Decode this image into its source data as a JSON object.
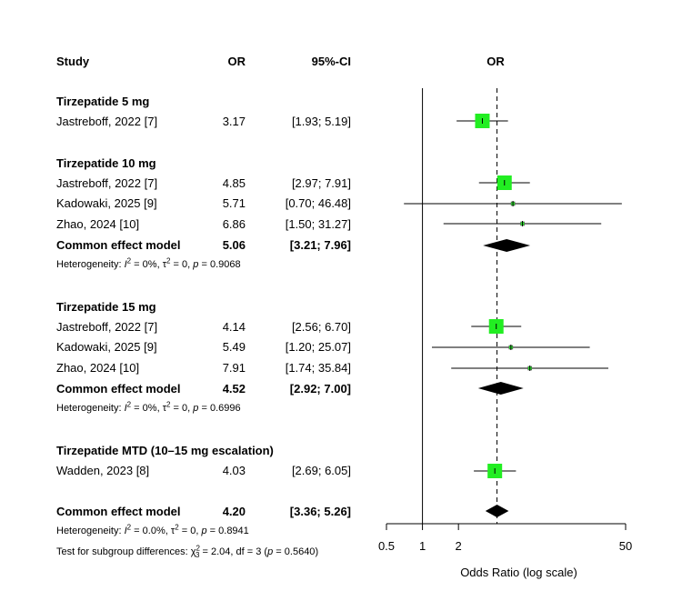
{
  "headers": {
    "study": "Study",
    "or": "OR",
    "ci": "95%-CI",
    "plot": "OR"
  },
  "groups": [
    {
      "title": "Tirzepatide 5 mg",
      "studies": [
        {
          "name": "Jastreboff, 2022 [7]",
          "or": "3.17",
          "ci": "[1.93;  5.19]"
        }
      ]
    },
    {
      "title": "Tirzepatide 10 mg",
      "studies": [
        {
          "name": "Jastreboff, 2022 [7]",
          "or": "4.85",
          "ci": "[2.97;  7.91]"
        },
        {
          "name": "Kadowaki, 2025 [9]",
          "or": "5.71",
          "ci": "[0.70; 46.48]"
        },
        {
          "name": "Zhao, 2024 [10]",
          "or": "6.86",
          "ci": "[1.50; 31.27]"
        }
      ],
      "summary": {
        "label": "Common effect model",
        "or": "5.06",
        "ci": "[3.21;  7.96]"
      },
      "het": {
        "i2": "0%",
        "tau2": "0",
        "p": "0.9068"
      }
    },
    {
      "title": "Tirzepatide 15 mg",
      "studies": [
        {
          "name": "Jastreboff, 2022 [7]",
          "or": "4.14",
          "ci": "[2.56;  6.70]"
        },
        {
          "name": "Kadowaki, 2025 [9]",
          "or": "5.49",
          "ci": "[1.20; 25.07]"
        },
        {
          "name": "Zhao, 2024 [10]",
          "or": "7.91",
          "ci": "[1.74; 35.84]"
        }
      ],
      "summary": {
        "label": "Common effect model",
        "or": "4.52",
        "ci": "[2.92;  7.00]"
      },
      "het": {
        "i2": "0%",
        "tau2": "0",
        "p": "0.6996"
      }
    },
    {
      "title": "Tirzepatide MTD (10–15 mg escalation)",
      "studies": [
        {
          "name": "Wadden, 2023 [8]",
          "or": "4.03",
          "ci": "[2.69;  6.05]"
        }
      ]
    }
  ],
  "overall": {
    "label": "Common effect model",
    "or": "4.20",
    "ci": "[3.36;  5.26]",
    "het": {
      "i2": "0.0%",
      "tau2": "0",
      "p": "0.8941"
    },
    "subgroup_test": {
      "chi2": "2.04",
      "df": "3",
      "p": "0.5640"
    }
  },
  "chart_data": {
    "type": "forest",
    "scale": "log",
    "xlabel": "Odds Ratio (log scale)",
    "xticks": [
      0.5,
      1,
      2,
      50
    ],
    "xtick_labels": [
      "0.5",
      "1",
      "2",
      "50"
    ],
    "xlim": [
      0.5,
      50
    ],
    "reference_line": 1,
    "pooled_line": 4.2,
    "rows": [
      {
        "kind": "study",
        "label": "Jastreboff, 2022 [7]",
        "or": 3.17,
        "lo": 1.93,
        "hi": 5.19,
        "weight": "large"
      },
      {
        "kind": "study",
        "label": "Jastreboff, 2022 [7]",
        "or": 4.85,
        "lo": 2.97,
        "hi": 7.91,
        "weight": "large"
      },
      {
        "kind": "study",
        "label": "Kadowaki, 2025 [9]",
        "or": 5.71,
        "lo": 0.7,
        "hi": 46.48,
        "weight": "small"
      },
      {
        "kind": "study",
        "label": "Zhao, 2024 [10]",
        "or": 6.86,
        "lo": 1.5,
        "hi": 31.27,
        "weight": "small"
      },
      {
        "kind": "summary",
        "label": "Common effect model",
        "or": 5.06,
        "lo": 3.21,
        "hi": 7.96
      },
      {
        "kind": "study",
        "label": "Jastreboff, 2022 [7]",
        "or": 4.14,
        "lo": 2.56,
        "hi": 6.7,
        "weight": "large"
      },
      {
        "kind": "study",
        "label": "Kadowaki, 2025 [9]",
        "or": 5.49,
        "lo": 1.2,
        "hi": 25.07,
        "weight": "small"
      },
      {
        "kind": "study",
        "label": "Zhao, 2024 [10]",
        "or": 7.91,
        "lo": 1.74,
        "hi": 35.84,
        "weight": "small"
      },
      {
        "kind": "summary",
        "label": "Common effect model",
        "or": 4.52,
        "lo": 2.92,
        "hi": 7.0
      },
      {
        "kind": "study",
        "label": "Wadden, 2023 [8]",
        "or": 4.03,
        "lo": 2.69,
        "hi": 6.05,
        "weight": "large"
      },
      {
        "kind": "summary",
        "label": "Common effect model",
        "or": 4.2,
        "lo": 3.36,
        "hi": 5.26
      }
    ],
    "colors": {
      "square": "#22ee22",
      "diamond": "#000000",
      "line": "#000000"
    }
  }
}
